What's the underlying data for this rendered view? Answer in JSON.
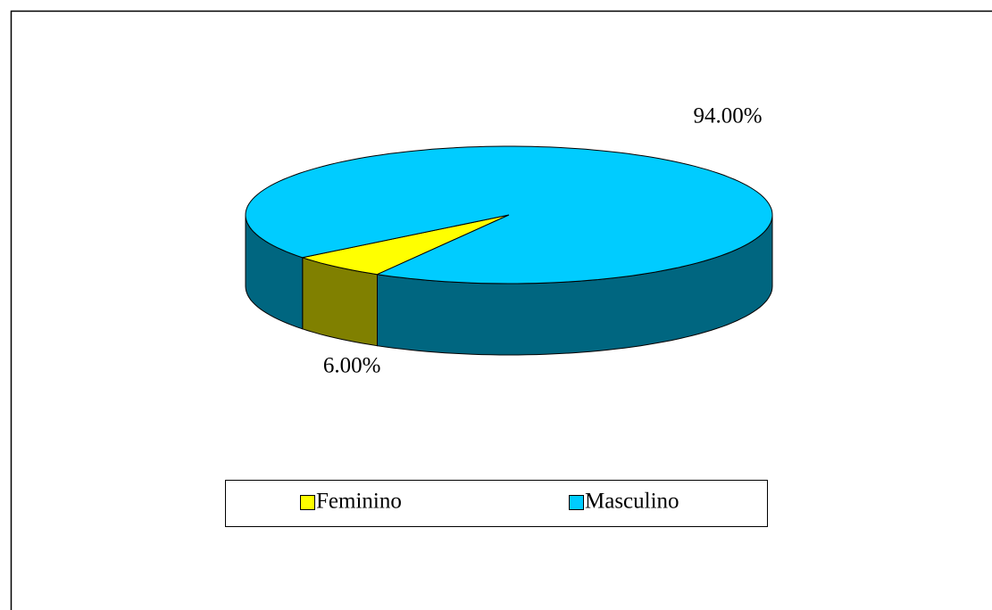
{
  "chart_data": {
    "type": "pie",
    "categories": [
      "Feminino",
      "Masculino"
    ],
    "values": [
      6,
      94
    ],
    "value_labels": [
      "6.00%",
      "94.00%"
    ],
    "colors": [
      "#ffff00",
      "#00ccff"
    ],
    "side_colors": [
      "#808000",
      "#006680"
    ],
    "legend": "bottom"
  }
}
